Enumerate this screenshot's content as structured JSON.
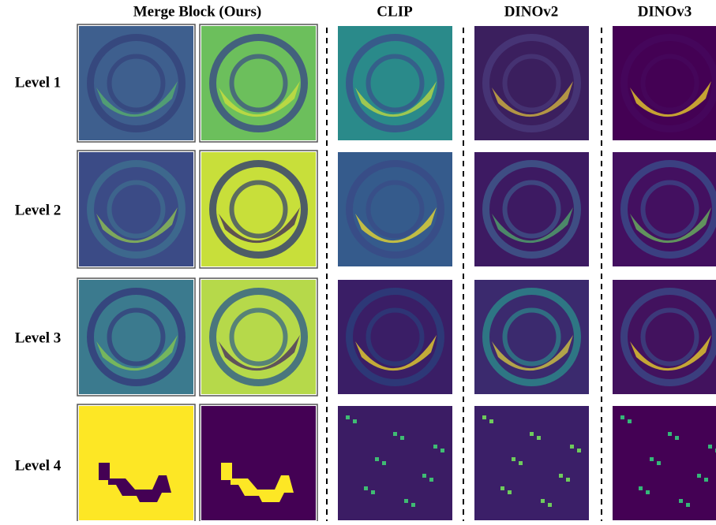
{
  "header": {
    "columns": [
      "Merge Block (Ours)",
      "CLIP",
      "DINOv2",
      "DINOv3"
    ]
  },
  "rows": [
    "Level 1",
    "Level 2",
    "Level 3",
    "Level 4"
  ]
}
